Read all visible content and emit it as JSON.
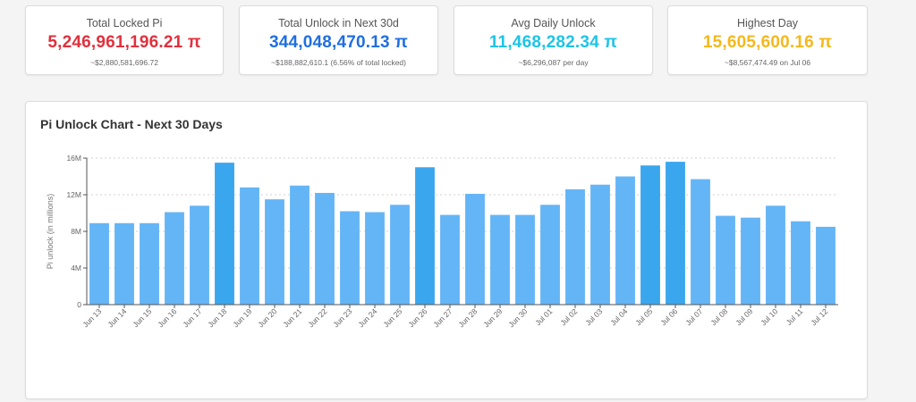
{
  "cards": [
    {
      "title": "Total Locked Pi",
      "value": "5,246,961,196.21 π",
      "sub": "~$2,880,581,696.72",
      "color": "#e0313d"
    },
    {
      "title": "Total Unlock in Next 30d",
      "value": "344,048,470.13 π",
      "sub": "~$188,882,610.1 (6.56% of total locked)",
      "color": "#1f6fe0"
    },
    {
      "title": "Avg Daily Unlock",
      "value": "11,468,282.34 π",
      "sub": "~$6,296,087 per day",
      "color": "#1ec4e8"
    },
    {
      "title": "Highest Day",
      "value": "15,605,600.16 π",
      "sub": "~$8,567,474.49 on Jul 06",
      "color": "#f5b81c"
    }
  ],
  "chart": {
    "title": "Pi Unlock Chart - Next 30 Days"
  },
  "colors": {
    "bar": "#64b5f6",
    "bar_highlight": "#3aa6ee",
    "grid": "#d0d0d0",
    "axis": "#555555"
  },
  "chart_data": {
    "type": "bar",
    "title": "Pi Unlock Chart - Next 30 Days",
    "xlabel": "",
    "ylabel": "Pi unlock (in millions)",
    "ylim": [
      0,
      16
    ],
    "yticks": [
      "0",
      "4M",
      "8M",
      "12M",
      "16M"
    ],
    "grid": true,
    "categories": [
      "Jun 13",
      "Jun 14",
      "Jun 15",
      "Jun 16",
      "Jun 17",
      "Jun 18",
      "Jun 19",
      "Jun 20",
      "Jun 21",
      "Jun 22",
      "Jun 23",
      "Jun 24",
      "Jun 25",
      "Jun 26",
      "Jun 27",
      "Jun 28",
      "Jun 29",
      "Jun 30",
      "Jul 01",
      "Jul 02",
      "Jul 03",
      "Jul 04",
      "Jul 05",
      "Jul 06",
      "Jul 07",
      "Jul 08",
      "Jul 09",
      "Jul 10",
      "Jul 11",
      "Jul 12"
    ],
    "values": [
      8.9,
      8.9,
      8.9,
      10.1,
      10.8,
      15.5,
      12.8,
      11.5,
      13.0,
      12.2,
      10.2,
      10.1,
      10.9,
      15.0,
      9.8,
      12.1,
      9.8,
      9.8,
      10.9,
      12.6,
      13.1,
      14.0,
      15.2,
      15.6,
      13.7,
      9.7,
      9.5,
      10.8,
      9.1,
      8.5
    ],
    "highlighted": [
      "Jun 18",
      "Jun 26",
      "Jul 05",
      "Jul 06"
    ]
  }
}
